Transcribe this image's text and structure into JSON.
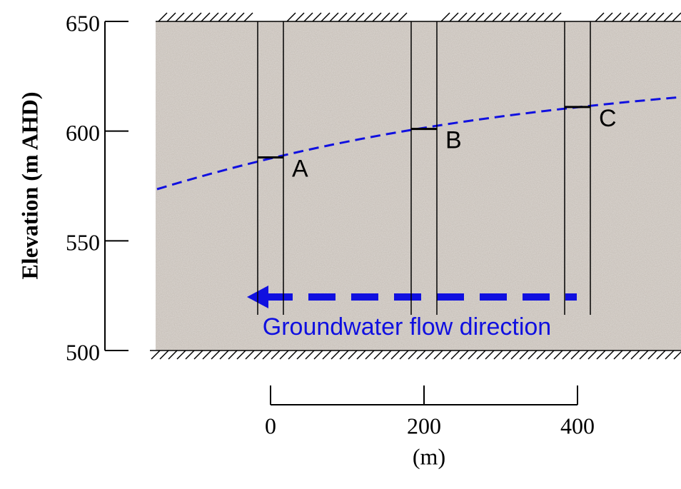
{
  "y_axis": {
    "label": "Elevation (m AHD)",
    "ylim": [
      500,
      650
    ],
    "yticks": [
      500,
      550,
      600,
      650
    ]
  },
  "x_scale": {
    "label": "(m)",
    "ticks": [
      0,
      200,
      400
    ]
  },
  "wells": [
    {
      "label": "A",
      "distance": 0,
      "water_level": 588
    },
    {
      "label": "B",
      "distance": 200,
      "water_level": 601
    },
    {
      "label": "C",
      "distance": 400,
      "water_level": 611
    }
  ],
  "flow_label": "Groundwater flow direction"
}
